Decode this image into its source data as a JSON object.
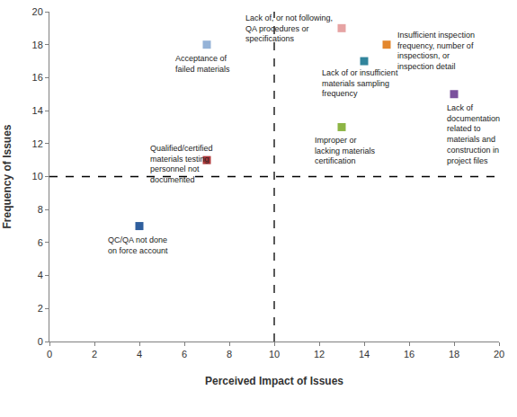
{
  "chart_data": {
    "type": "scatter",
    "xlabel": "Perceived Impact of Issues",
    "ylabel": "Frequency of Issues",
    "x": [
      4,
      7,
      7,
      13,
      15,
      14,
      18,
      13
    ],
    "values": [
      7,
      11,
      18,
      19,
      18,
      17,
      15,
      13
    ],
    "labels": [
      [
        "QC/QA not done",
        "on force account"
      ],
      [
        "Qualified/certified",
        "materials testing",
        "personnel not",
        "documented"
      ],
      [
        "Acceptance of",
        "failed materials"
      ],
      [
        "Lack of, or not following,",
        "QA procedures or",
        "specifications"
      ],
      [
        "Insufficient inspection",
        "frequency, number of",
        "inspectiosn, or",
        "inspection detail"
      ],
      [
        "Lack of or insufficient",
        "materials sampling",
        "frequency"
      ],
      [
        "Lack of",
        "documentation",
        "related to",
        "materials and",
        "construction in",
        "project files"
      ],
      [
        "Improper or",
        "lacking materials",
        "certification"
      ]
    ],
    "colors": [
      "#2f5f9e",
      "#b0383a",
      "#95b3d7",
      "#e6a3a3",
      "#e3872d",
      "#31859c",
      "#7b519d",
      "#8db545"
    ],
    "marker": "square",
    "xlim": [
      0,
      20
    ],
    "ylim": [
      0,
      20
    ],
    "xticks": [
      0,
      2,
      4,
      6,
      8,
      10,
      12,
      14,
      16,
      18,
      20
    ],
    "yticks": [
      0,
      2,
      4,
      6,
      8,
      10,
      12,
      14,
      16,
      18,
      20
    ],
    "grid": false,
    "reference_lines": {
      "x": 10,
      "y": 10
    },
    "line_style": "dashed"
  }
}
